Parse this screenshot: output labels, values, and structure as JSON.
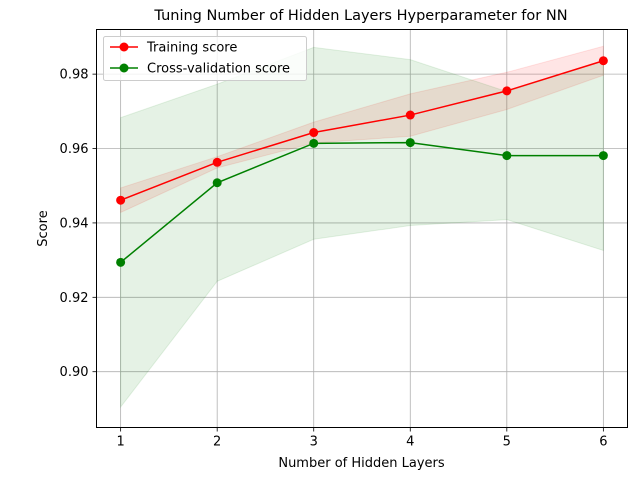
{
  "chart_data": {
    "type": "line",
    "title": "Tuning Number of Hidden Layers Hyperparameter for NN",
    "xlabel": "Number of Hidden Layers",
    "ylabel": "Score",
    "x": [
      1,
      2,
      3,
      4,
      5,
      6
    ],
    "xlim": [
      0.75,
      6.25
    ],
    "ylim": [
      0.885,
      0.992
    ],
    "xticks": [
      1,
      2,
      3,
      4,
      5,
      6
    ],
    "yticks": [
      0.9,
      0.92,
      0.94,
      0.96,
      0.98
    ],
    "ytick_labels": [
      "0.90",
      "0.92",
      "0.94",
      "0.96",
      "0.98"
    ],
    "grid": true,
    "legend": "upper left",
    "series": [
      {
        "name": "Training score",
        "color": "#ff0000",
        "band_color": "#ff0000",
        "values": [
          0.9461,
          0.9563,
          0.9643,
          0.969,
          0.9755,
          0.9836
        ],
        "lower": [
          0.9428,
          0.9548,
          0.9615,
          0.9633,
          0.9705,
          0.9797
        ],
        "upper": [
          0.9494,
          0.9578,
          0.9671,
          0.9747,
          0.9805,
          0.9875
        ]
      },
      {
        "name": "Cross-validation score",
        "color": "#008000",
        "band_color": "#008000",
        "values": [
          0.9294,
          0.9508,
          0.9614,
          0.9616,
          0.9581,
          0.9581
        ],
        "lower": [
          0.8905,
          0.9243,
          0.9356,
          0.9393,
          0.9409,
          0.9326
        ],
        "upper": [
          0.9683,
          0.9773,
          0.9872,
          0.9839,
          0.9753,
          0.9836
        ]
      }
    ]
  }
}
